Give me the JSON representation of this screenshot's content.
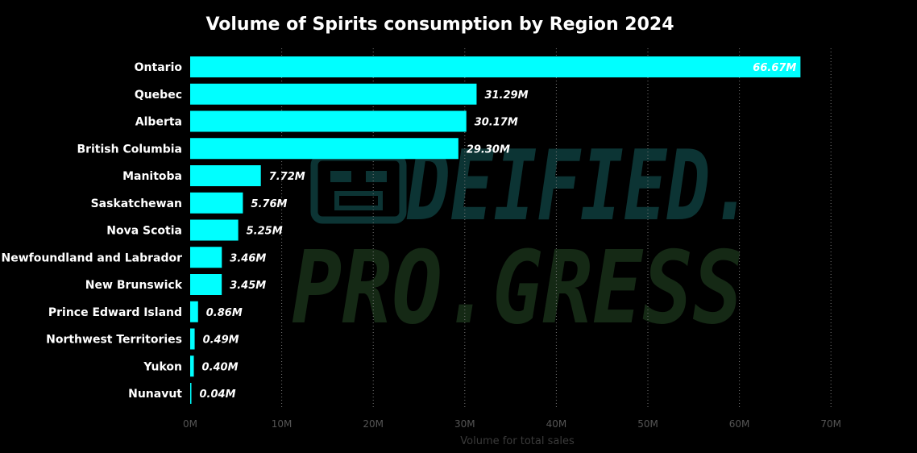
{
  "chart_data": {
    "type": "bar",
    "orientation": "horizontal",
    "title": "Volume of Spirits consumption by Region 2024",
    "xlabel": "Volume for total sales",
    "ylabel": "",
    "categories": [
      "Ontario",
      "Quebec",
      "Alberta",
      "British Columbia",
      "Manitoba",
      "Saskatchewan",
      "Nova Scotia",
      "Newfoundland and Labrador",
      "New Brunswick",
      "Prince Edward Island",
      "Northwest Territories",
      "Yukon",
      "Nunavut"
    ],
    "values": [
      66.67,
      31.29,
      30.17,
      29.3,
      7.72,
      5.76,
      5.25,
      3.46,
      3.45,
      0.86,
      0.49,
      0.4,
      0.04
    ],
    "data_labels": [
      "66.67M",
      "31.29M",
      "30.17M",
      "29.30M",
      "7.72M",
      "5.76M",
      "5.25M",
      "3.46M",
      "3.45M",
      "0.86M",
      "0.49M",
      "0.40M",
      "0.04M"
    ],
    "value_unit": "M",
    "xlim": [
      0,
      70
    ],
    "x_ticks": [
      0,
      10,
      20,
      30,
      40,
      50,
      60,
      70
    ],
    "x_tick_labels": [
      "0M",
      "10M",
      "20M",
      "30M",
      "40M",
      "50M",
      "60M",
      "70M"
    ],
    "grid": true,
    "legend": "none",
    "colors": {
      "bar": "#00FFFF",
      "background": "#000000",
      "text": "#FFFFFF",
      "axis_text": "#555555",
      "grid": "#777777",
      "inside_label": "#FFFFFF",
      "outside_label": "#FFFFFF"
    }
  },
  "watermark": {
    "line1": "DEIFIED.",
    "line2": "PRO.GRESS",
    "icon": "tiki-mask-icon",
    "color_line1": "#0c3434",
    "color_line2": "#152915"
  }
}
